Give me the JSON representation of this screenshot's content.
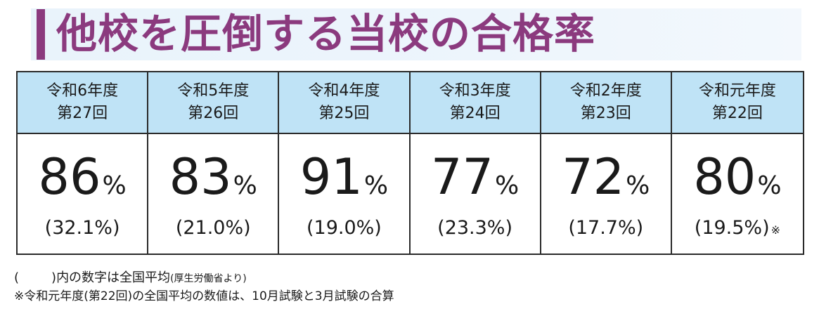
{
  "title": "他校を圧倒する当校の合格率",
  "columns": [
    {
      "year": "令和6年度",
      "exam": "第27回",
      "rate": "86",
      "national": "(32.1%)",
      "note": ""
    },
    {
      "year": "令和5年度",
      "exam": "第26回",
      "rate": "83",
      "national": "(21.0%)",
      "note": ""
    },
    {
      "year": "令和4年度",
      "exam": "第25回",
      "rate": "91",
      "national": "(19.0%)",
      "note": ""
    },
    {
      "year": "令和3年度",
      "exam": "第24回",
      "rate": "77",
      "national": "(23.3%)",
      "note": ""
    },
    {
      "year": "令和2年度",
      "exam": "第23回",
      "rate": "72",
      "national": "(17.7%)",
      "note": ""
    },
    {
      "year": "令和元年度",
      "exam": "第22回",
      "rate": "80",
      "national": "(19.5%)",
      "note": "※"
    }
  ],
  "percent_sign": "%",
  "footnotes": {
    "paren_open": "(",
    "paren_close": ")",
    "line1_main": "内の数字は全国平均",
    "line1_source": "(厚生労働省より)",
    "line2": "※令和元年度(第22回)の全国平均の数値は、10月試験と3月試験の合算"
  },
  "colors": {
    "accent": "#8b3a7e",
    "header_bg": "#bfe3f6",
    "title_bg": "#edf5fc"
  }
}
